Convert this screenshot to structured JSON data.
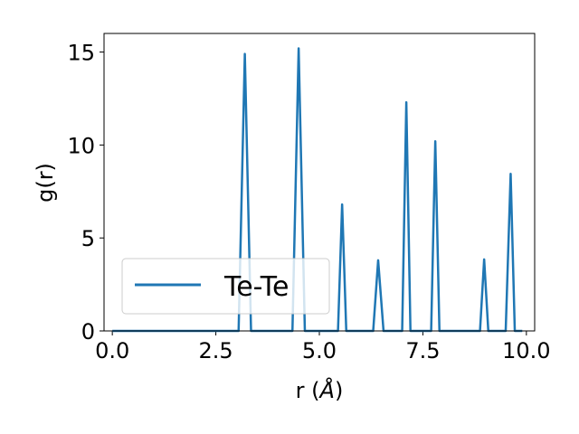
{
  "chart_data": {
    "type": "line",
    "xlabel_main": "r (",
    "xlabel_unit": "Å",
    "xlabel_close": ")",
    "ylabel": "g(r)",
    "xlim": [
      -0.2,
      10.2
    ],
    "ylim": [
      0,
      16
    ],
    "xticks": [
      0.0,
      2.5,
      5.0,
      7.5,
      10.0
    ],
    "xtick_labels": [
      "0.0",
      "2.5",
      "5.0",
      "7.5",
      "10.0"
    ],
    "yticks": [
      0,
      5,
      10,
      15
    ],
    "ytick_labels": [
      "0",
      "5",
      "10",
      "15"
    ],
    "grid": false,
    "legend_position": "lower-left",
    "series": [
      {
        "name": "Te-Te",
        "color": "#1f77b4",
        "x": [
          0.0,
          3.05,
          3.2,
          3.35,
          4.35,
          4.5,
          4.65,
          5.45,
          5.55,
          5.65,
          6.3,
          6.42,
          6.55,
          7.0,
          7.1,
          7.2,
          7.7,
          7.8,
          7.9,
          8.88,
          8.98,
          9.08,
          9.5,
          9.62,
          9.72,
          9.9
        ],
        "y": [
          0,
          0,
          14.9,
          0,
          0,
          15.2,
          0,
          0,
          6.8,
          0,
          0,
          3.8,
          0,
          0,
          12.3,
          0,
          0,
          10.2,
          0,
          0,
          3.85,
          0,
          0,
          8.45,
          0,
          0
        ]
      }
    ]
  }
}
